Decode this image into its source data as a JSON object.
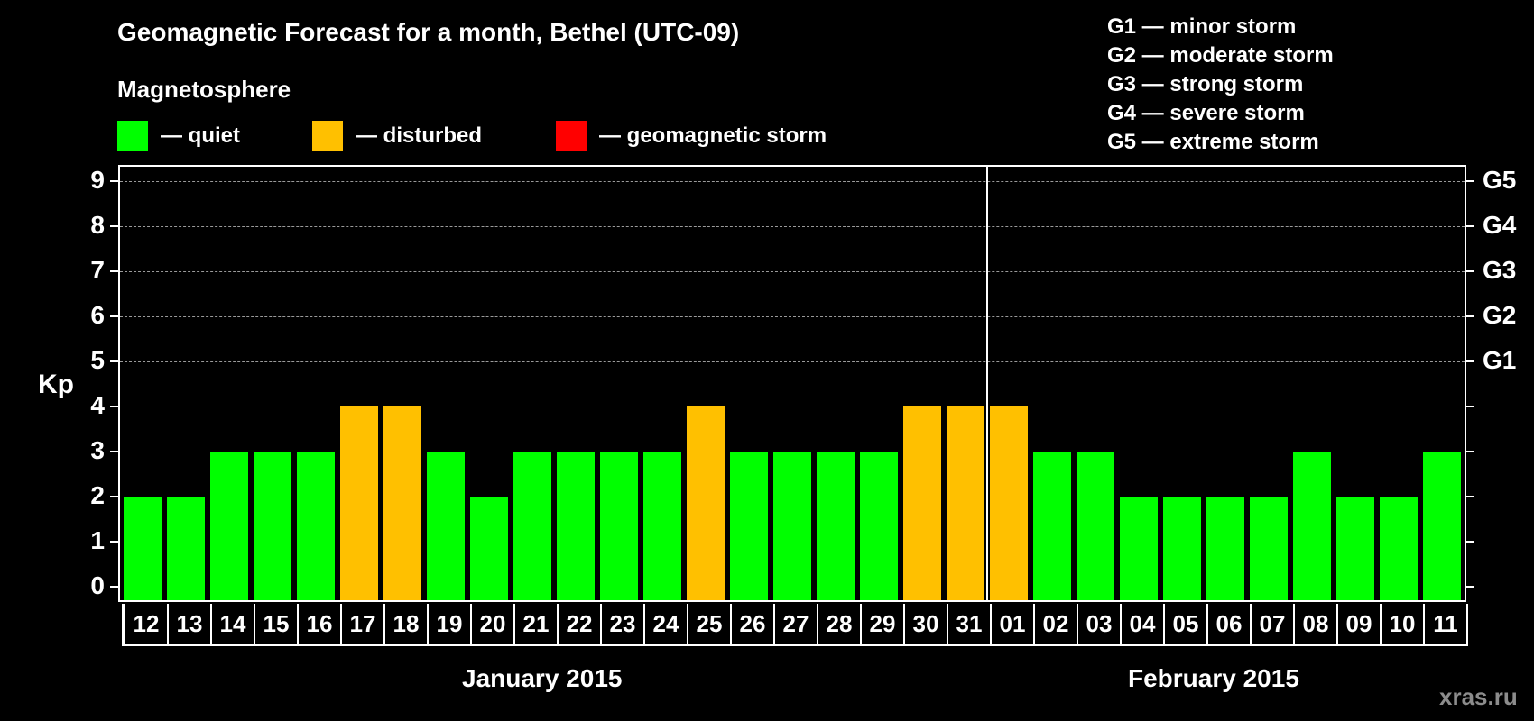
{
  "title": "Geomagnetic Forecast for a month, Bethel (UTC-09)",
  "subtitle": "Magnetosphere",
  "legend": [
    {
      "label": "— quiet",
      "color": "#00ff00"
    },
    {
      "label": "— disturbed",
      "color": "#ffc000"
    },
    {
      "label": "— geomagnetic storm",
      "color": "#ff0000"
    }
  ],
  "storm_scale": [
    "G1 — minor storm",
    "G2 — moderate storm",
    "G3 — strong storm",
    "G4 — severe storm",
    "G5 — extreme storm"
  ],
  "y_axis_label": "Kp",
  "y_ticks": [
    "0",
    "1",
    "2",
    "3",
    "4",
    "5",
    "6",
    "7",
    "8",
    "9"
  ],
  "right_ticks": {
    "5": "G1",
    "6": "G2",
    "7": "G3",
    "8": "G4",
    "9": "G5"
  },
  "months": {
    "january": "January 2015",
    "february": "February 2015"
  },
  "watermark": "xras.ru",
  "chart_data": {
    "type": "bar",
    "title": "Geomagnetic Forecast for a month, Bethel (UTC-09)",
    "xlabel": "January 2015 / February 2015",
    "ylabel": "Kp",
    "ylim": [
      0,
      9
    ],
    "grid": true,
    "categories": [
      "12",
      "13",
      "14",
      "15",
      "16",
      "17",
      "18",
      "19",
      "20",
      "21",
      "22",
      "23",
      "24",
      "25",
      "26",
      "27",
      "28",
      "29",
      "30",
      "31",
      "01",
      "02",
      "03",
      "04",
      "05",
      "06",
      "07",
      "08",
      "09",
      "10",
      "11"
    ],
    "values": [
      2,
      2,
      3,
      3,
      3,
      4,
      4,
      3,
      2,
      3,
      3,
      3,
      3,
      4,
      3,
      3,
      3,
      3,
      4,
      4,
      4,
      3,
      3,
      2,
      2,
      2,
      2,
      3,
      2,
      2,
      3
    ],
    "status": [
      "quiet",
      "quiet",
      "quiet",
      "quiet",
      "quiet",
      "disturbed",
      "disturbed",
      "quiet",
      "quiet",
      "quiet",
      "quiet",
      "quiet",
      "quiet",
      "disturbed",
      "quiet",
      "quiet",
      "quiet",
      "quiet",
      "disturbed",
      "disturbed",
      "disturbed",
      "quiet",
      "quiet",
      "quiet",
      "quiet",
      "quiet",
      "quiet",
      "quiet",
      "quiet",
      "quiet",
      "quiet"
    ],
    "colors": {
      "quiet": "#00ff00",
      "disturbed": "#ffc000",
      "storm": "#ff0000"
    },
    "legend": [
      "quiet",
      "disturbed",
      "geomagnetic storm"
    ],
    "secondary_axis": {
      "5": "G1",
      "6": "G2",
      "7": "G3",
      "8": "G4",
      "9": "G5"
    },
    "month_split_index": 20
  }
}
